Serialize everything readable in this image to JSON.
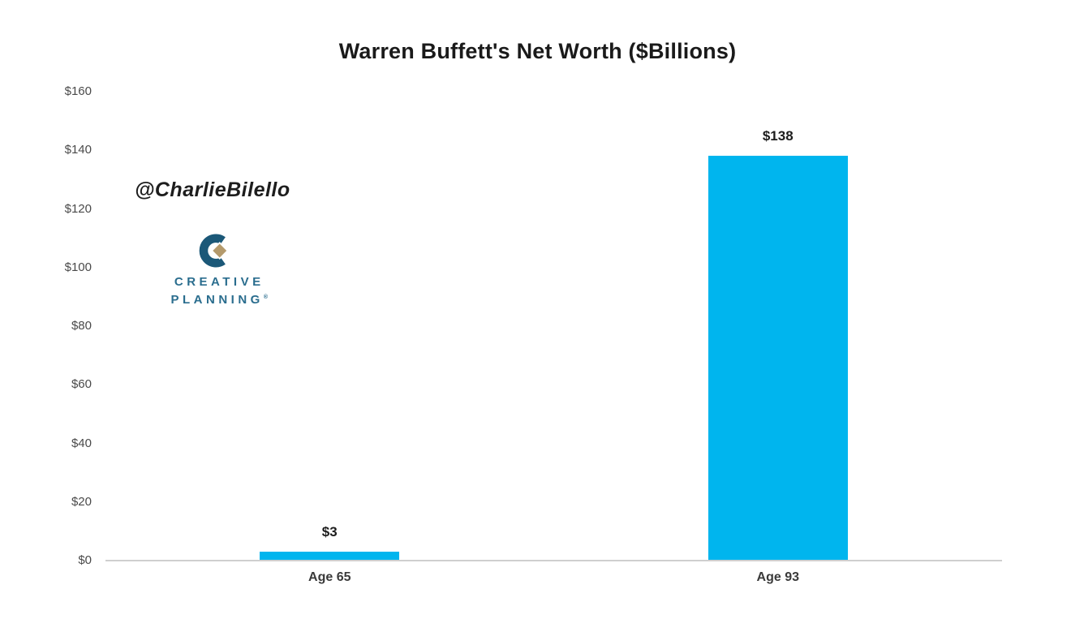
{
  "watermark": "@CharlieBilello",
  "logo": {
    "name": "Creative Planning",
    "line1": "CREATIVE",
    "line2": "PLANNING",
    "mark": "®",
    "icon_color": "#1b5878",
    "diamond_color": "#b49a6c",
    "text_color": "#2a6d8e"
  },
  "chart_data": {
    "type": "bar",
    "title": "Warren Buffett's Net Worth ($Billions)",
    "categories": [
      "Age 65",
      "Age 93"
    ],
    "values": [
      3,
      138
    ],
    "value_labels": [
      "$3",
      "$138"
    ],
    "ylim": [
      0,
      160
    ],
    "yticks": [
      {
        "label": "$0",
        "value": 0
      },
      {
        "label": "$20",
        "value": 20
      },
      {
        "label": "$40",
        "value": 40
      },
      {
        "label": "$60",
        "value": 60
      },
      {
        "label": "$80",
        "value": 80
      },
      {
        "label": "$100",
        "value": 100
      },
      {
        "label": "$120",
        "value": 120
      },
      {
        "label": "$140",
        "value": 140
      },
      {
        "label": "$160",
        "value": 160
      }
    ],
    "xlabel": "",
    "ylabel": "",
    "grid": false,
    "legend": false,
    "bar_color": "#00b5ee",
    "axis_line_color": "#cfcfcf",
    "tick_label_color": "#4a4a4a"
  }
}
